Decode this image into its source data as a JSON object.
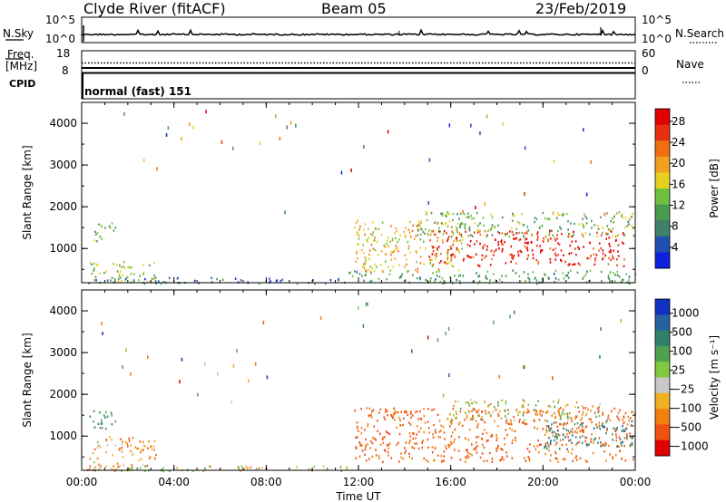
{
  "header": {
    "station": "Clyde River (fitACF)",
    "beam": "Beam 05",
    "date": "23/Feb/2019"
  },
  "summary_panels": {
    "left": {
      "nsky_label": "N.Sky",
      "nsky_top": "10^5",
      "nsky_bottom": "10^0",
      "freq_label_1": "Freq.",
      "freq_label_2": "[MHz]",
      "freq_top": "18",
      "freq_bottom": "8",
      "cpid_label": "CPID"
    },
    "right": {
      "nsearch_label": "N.Search",
      "nsearch_top": "10^5",
      "nsearch_bottom": "10^0",
      "nave_label": "Nave",
      "nave_top": "60",
      "nave_bottom": "0"
    },
    "cpid_text": "normal (fast) 151"
  },
  "colors": {
    "power_scale": [
      "#1020e0",
      "#2050b0",
      "#40806a",
      "#4a9a50",
      "#70c040",
      "#e8d020",
      "#f0a020",
      "#f07010",
      "#e83010",
      "#e00000"
    ],
    "velocity_scale": [
      "#1030c0",
      "#2860a0",
      "#30806a",
      "#50a050",
      "#80c840",
      "#c8c8c8",
      "#f0b020",
      "#f08010",
      "#f05010",
      "#e00000"
    ]
  },
  "chart_data": [
    {
      "type": "heatmap",
      "name": "power",
      "ylabel": "Slant Range [km]",
      "xlabel": "",
      "xticks": [
        "00:00",
        "04:00",
        "08:00",
        "12:00",
        "16:00",
        "20:00",
        "00:00"
      ],
      "yticks": [
        1000,
        2000,
        3000,
        4000
      ],
      "ylim": [
        180,
        4500
      ],
      "xlim_hours": [
        0,
        24
      ],
      "colorbar_label": "Power [dB]",
      "colorbar_ticks": [
        "4",
        "8",
        "12",
        "16",
        "20",
        "24",
        "28"
      ],
      "regions": [
        {
          "t0": 0.3,
          "t1": 3.2,
          "r0": 200,
          "r1": 700,
          "v": 14
        },
        {
          "t0": 0.3,
          "t1": 1.5,
          "r0": 1200,
          "r1": 1650,
          "v": 12
        },
        {
          "t0": 0.2,
          "t1": 11.5,
          "r0": 180,
          "r1": 330,
          "v": 6
        },
        {
          "t0": 11.5,
          "t1": 24,
          "r0": 180,
          "r1": 500,
          "v": 10
        },
        {
          "t0": 11.8,
          "t1": 16.5,
          "r0": 450,
          "r1": 1700,
          "v": 18
        },
        {
          "t0": 15.0,
          "t1": 23.5,
          "r0": 600,
          "r1": 1450,
          "v": 27
        },
        {
          "t0": 14.5,
          "t1": 24,
          "r0": 1300,
          "r1": 1900,
          "v": 12
        }
      ]
    },
    {
      "type": "heatmap",
      "name": "velocity",
      "ylabel": "Slant Range [km]",
      "xlabel": "Time UT",
      "xticks": [
        "00:00",
        "04:00",
        "08:00",
        "12:00",
        "16:00",
        "20:00",
        "00:00"
      ],
      "yticks": [
        1000,
        2000,
        3000,
        4000
      ],
      "ylim": [
        180,
        4500
      ],
      "xlim_hours": [
        0,
        24
      ],
      "colorbar_label": "Velocity [m s⁻¹]",
      "colorbar_ticks": [
        "1000",
        "500",
        "100",
        "25",
        "−25",
        "−100",
        "−500",
        "−1000"
      ],
      "regions": [
        {
          "t0": 0.3,
          "t1": 3.2,
          "r0": 200,
          "r1": 1000,
          "v": -150
        },
        {
          "t0": 0.3,
          "t1": 1.5,
          "r0": 1200,
          "r1": 1650,
          "v": 300
        },
        {
          "t0": 0.2,
          "t1": 11.5,
          "r0": 180,
          "r1": 300,
          "v": 10
        },
        {
          "t0": 11.8,
          "t1": 24,
          "r0": 400,
          "r1": 1700,
          "v": -300
        },
        {
          "t0": 16.0,
          "t1": 22.5,
          "r0": 1400,
          "r1": 1900,
          "v": 10
        },
        {
          "t0": 20.0,
          "t1": 24,
          "r0": 700,
          "r1": 1400,
          "v": 400
        }
      ]
    }
  ]
}
